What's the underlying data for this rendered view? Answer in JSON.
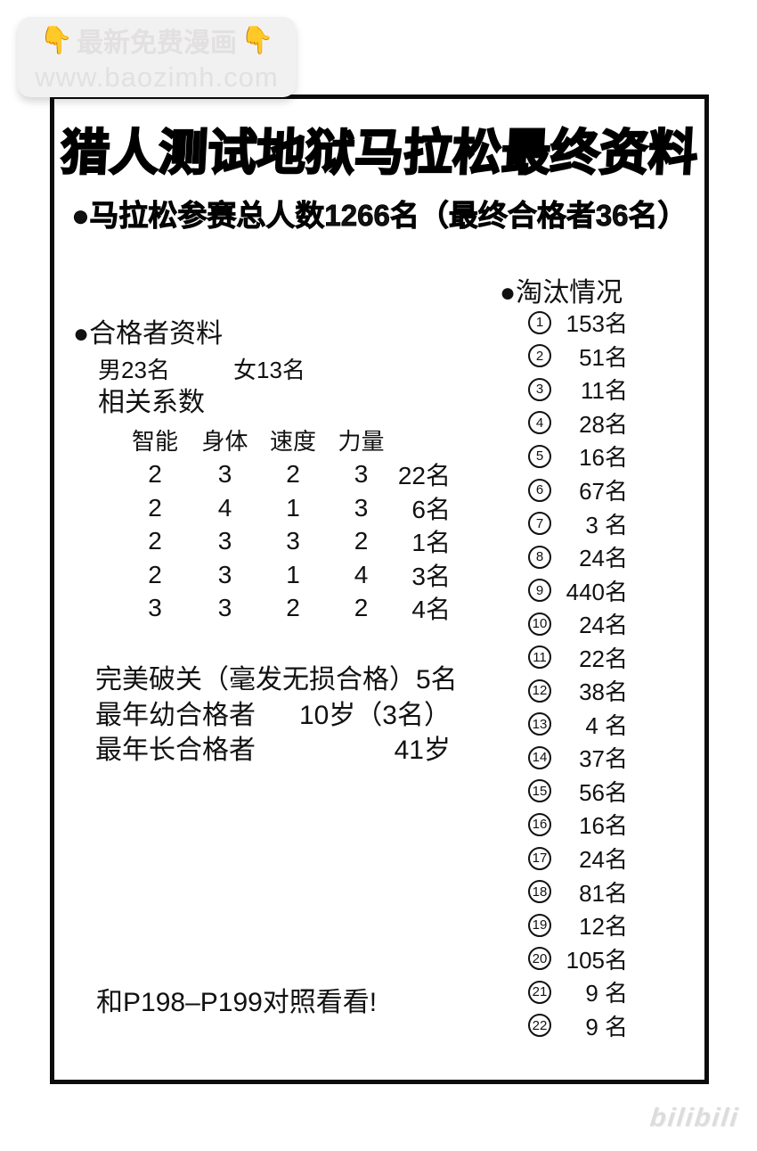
{
  "watermark": {
    "emoji": "👇",
    "label": "最新免费漫画",
    "url": "www.baozimh.com"
  },
  "title": "猎人测试地狱马拉松最终资料",
  "subtitle": "●马拉松参赛总人数1266名（最终合格者36名）",
  "qualifiers": {
    "heading": "●合格者资料",
    "male": "男23名",
    "female": "女13名",
    "coefficients_heading": "相关系数",
    "table": {
      "headers": [
        "智能",
        "身体",
        "速度",
        "力量"
      ],
      "rows": [
        {
          "values": [
            "2",
            "3",
            "2",
            "3"
          ],
          "count": "22名"
        },
        {
          "values": [
            "2",
            "4",
            "1",
            "3"
          ],
          "count": "6名"
        },
        {
          "values": [
            "2",
            "3",
            "3",
            "2"
          ],
          "count": "1名"
        },
        {
          "values": [
            "2",
            "3",
            "1",
            "4"
          ],
          "count": "3名"
        },
        {
          "values": [
            "3",
            "3",
            "2",
            "2"
          ],
          "count": "4名"
        }
      ]
    },
    "stats": [
      {
        "label": "完美破关（毫发无损合格）",
        "value": "5名"
      },
      {
        "label": "最年幼合格者",
        "value": "10岁（3名）"
      },
      {
        "label": "最年长合格者",
        "value": "41岁"
      }
    ],
    "note": "和P198–P199对照看看!"
  },
  "eliminations": {
    "heading": "●淘汰情况",
    "items": [
      {
        "no": "1",
        "count": "153名"
      },
      {
        "no": "2",
        "count": "51名"
      },
      {
        "no": "3",
        "count": "11名"
      },
      {
        "no": "4",
        "count": "28名"
      },
      {
        "no": "5",
        "count": "16名"
      },
      {
        "no": "6",
        "count": "67名"
      },
      {
        "no": "7",
        "count": "3 名"
      },
      {
        "no": "8",
        "count": "24名"
      },
      {
        "no": "9",
        "count": "440名"
      },
      {
        "no": "10",
        "count": "24名"
      },
      {
        "no": "11",
        "count": "22名"
      },
      {
        "no": "12",
        "count": "38名"
      },
      {
        "no": "13",
        "count": "4 名"
      },
      {
        "no": "14",
        "count": "37名"
      },
      {
        "no": "15",
        "count": "56名"
      },
      {
        "no": "16",
        "count": "16名"
      },
      {
        "no": "17",
        "count": "24名"
      },
      {
        "no": "18",
        "count": "81名"
      },
      {
        "no": "19",
        "count": "12名"
      },
      {
        "no": "20",
        "count": "105名"
      },
      {
        "no": "21",
        "count": "9 名"
      },
      {
        "no": "22",
        "count": "9 名"
      }
    ]
  },
  "logo": "bilibili"
}
